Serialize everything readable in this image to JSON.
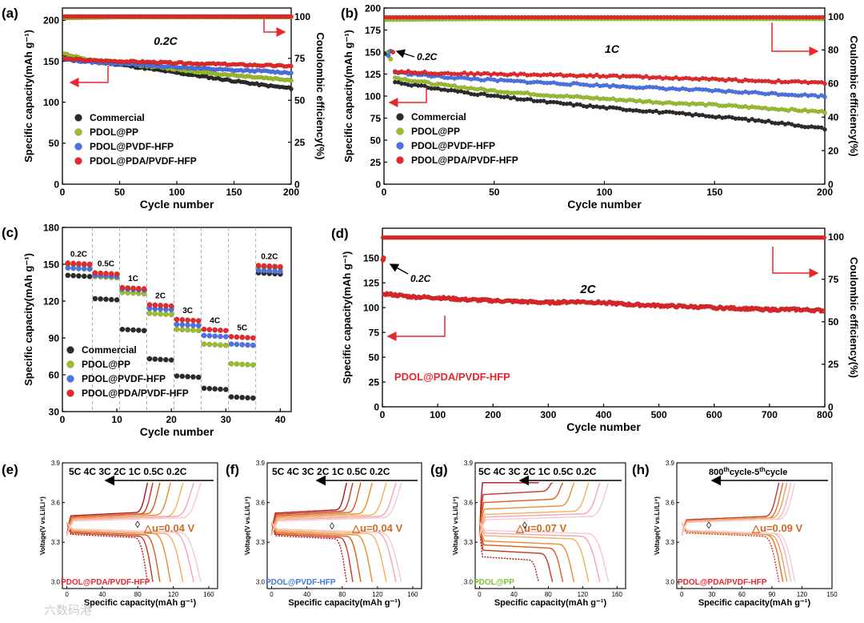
{
  "watermark": "六数码港",
  "colors": {
    "commercial": "#2b2b2b",
    "pp": "#9bbf2a",
    "pvdf": "#4a73e8",
    "pda": "#e8282b",
    "arrow": "#e8282b",
    "plot_text": "#000000",
    "panel_e_label": "#e8282b",
    "panel_f_label": "#3f7ad6",
    "panel_g_label": "#7fbf3a",
    "panel_h_label": "#e8282b",
    "delta_text": "#d2691e"
  },
  "chart_data": [
    {
      "id": "a",
      "panel_label": "(a)",
      "type": "scatter",
      "annotation": "0.2C",
      "xlabel": "Cycle number",
      "ylabel": "Specific capacity(mAh g⁻¹)",
      "y2label": "Couolombic efficiency(%)",
      "xlim": [
        0,
        200
      ],
      "ylim": [
        0,
        215
      ],
      "y2lim": [
        0,
        105
      ],
      "xticks": [
        0,
        50,
        100,
        150,
        200
      ],
      "yticks": [
        0,
        50,
        100,
        150,
        200
      ],
      "y2ticks": [
        0,
        25,
        50,
        75,
        100
      ],
      "legend": [
        "Commercial",
        "PDOL@PP",
        "PDOL@PVDF-HFP",
        "PDOL@PDA/PVDF-HFP"
      ],
      "series": [
        {
          "name": "Commercial",
          "color_key": "commercial",
          "x": [
            2,
            25,
            50,
            75,
            100,
            125,
            150,
            175,
            200
          ],
          "y": [
            158,
            150,
            146,
            141,
            136,
            131,
            126,
            121,
            117
          ]
        },
        {
          "name": "PDOL@PP",
          "color_key": "pp",
          "x": [
            2,
            25,
            50,
            75,
            100,
            125,
            150,
            175,
            200
          ],
          "y": [
            159,
            151,
            148,
            144,
            140,
            136,
            133,
            130,
            127
          ]
        },
        {
          "name": "PDOL@PVDF-HFP",
          "color_key": "pvdf",
          "x": [
            2,
            25,
            50,
            75,
            100,
            125,
            150,
            175,
            200
          ],
          "y": [
            152,
            149,
            147,
            145,
            143,
            141,
            139,
            138,
            136
          ]
        },
        {
          "name": "PDOL@PDA/PVDF-HFP",
          "color_key": "pda",
          "x": [
            2,
            25,
            50,
            75,
            100,
            125,
            150,
            175,
            200
          ],
          "y": [
            153,
            151,
            150,
            149,
            148,
            147,
            146,
            145,
            144
          ]
        }
      ],
      "ce_series": [
        {
          "color_key": "pp",
          "x": [
            1,
            50,
            100,
            150,
            200
          ],
          "y": [
            99,
            99.5,
            99.5,
            99.5,
            99.5
          ]
        },
        {
          "color_key": "pda",
          "x": [
            1,
            50,
            100,
            150,
            200
          ],
          "y": [
            100,
            100,
            100,
            100,
            100
          ]
        }
      ]
    },
    {
      "id": "b",
      "panel_label": "(b)",
      "type": "scatter",
      "annotation": "1C",
      "annotation2": "0.2C",
      "xlabel": "Cycle number",
      "ylabel": "Specific capacity(mAh g⁻¹)",
      "y2label": "Coulombic efficiency(%)",
      "xlim": [
        0,
        200
      ],
      "ylim": [
        0,
        200
      ],
      "y2lim": [
        0,
        105
      ],
      "xticks": [
        0,
        50,
        100,
        150,
        200
      ],
      "yticks": [
        0,
        25,
        50,
        75,
        100,
        125,
        150,
        175,
        200
      ],
      "y2ticks": [
        0,
        20,
        40,
        60,
        80,
        100
      ],
      "legend": [
        "Commercial",
        "PDOL@PP",
        "PDOL@PVDF-HFP",
        "PDOL@PDA/PVDF-HFP"
      ],
      "series": [
        {
          "name": "Commercial",
          "color_key": "commercial",
          "x": [
            5,
            25,
            50,
            75,
            100,
            125,
            150,
            175,
            200
          ],
          "y": [
            116,
            108,
            100,
            93,
            87,
            82,
            77,
            71,
            63
          ]
        },
        {
          "name": "PDOL@PP",
          "color_key": "pp",
          "x": [
            5,
            25,
            50,
            75,
            100,
            125,
            150,
            175,
            200
          ],
          "y": [
            121,
            113,
            106,
            101,
            97,
            93,
            90,
            86,
            82
          ]
        },
        {
          "name": "PDOL@PVDF-HFP",
          "color_key": "pvdf",
          "x": [
            5,
            25,
            50,
            75,
            100,
            125,
            150,
            175,
            200
          ],
          "y": [
            127,
            122,
            118,
            115,
            112,
            109,
            106,
            103,
            100
          ]
        },
        {
          "name": "PDOL@PDA/PVDF-HFP",
          "color_key": "pda",
          "x": [
            5,
            25,
            50,
            75,
            100,
            125,
            150,
            175,
            200
          ],
          "y": [
            128,
            126,
            125,
            124,
            123,
            121,
            119,
            117,
            115
          ]
        }
      ],
      "ce_series": [
        {
          "color_key": "pvdf",
          "x": [
            1,
            50,
            100,
            150,
            200
          ],
          "y": [
            99,
            99,
            99,
            99,
            99
          ]
        },
        {
          "color_key": "pp",
          "x": [
            1,
            50,
            100,
            150,
            200
          ],
          "y": [
            98,
            98.5,
            98.5,
            98.5,
            98.5
          ]
        },
        {
          "color_key": "pda",
          "x": [
            1,
            50,
            100,
            150,
            200
          ],
          "y": [
            99.5,
            99.5,
            99.5,
            99.5,
            99.5
          ]
        }
      ]
    },
    {
      "id": "c",
      "panel_label": "(c)",
      "type": "scatter",
      "xlabel": "Cycle number",
      "ylabel": "Specific capacity(mAh g⁻¹)",
      "xlim": [
        0,
        42
      ],
      "ylim": [
        30,
        180
      ],
      "xticks": [
        0,
        10,
        20,
        30,
        40
      ],
      "yticks": [
        30,
        60,
        90,
        120,
        150,
        180
      ],
      "rate_labels": [
        "0.2C",
        "0.5C",
        "1C",
        "2C",
        "3C",
        "4C",
        "5C",
        "0.2C"
      ],
      "legend": [
        "Commercial",
        "PDOL@PP",
        "PDOL@PVDF-HFP",
        "PDOL@PDA/PVDF-HFP"
      ],
      "segments": [
        {
          "rate": "0.2C",
          "start": 1,
          "end": 5,
          "values": {
            "Commercial": 141,
            "PDOL@PP": 150,
            "PDOL@PVDF-HFP": 147,
            "PDOL@PDA/PVDF-HFP": 151
          }
        },
        {
          "rate": "0.5C",
          "start": 6,
          "end": 10,
          "values": {
            "Commercial": 122,
            "PDOL@PP": 140,
            "PDOL@PVDF-HFP": 141,
            "PDOL@PDA/PVDF-HFP": 143
          }
        },
        {
          "rate": "1C",
          "start": 11,
          "end": 15,
          "values": {
            "Commercial": 97,
            "PDOL@PP": 127,
            "PDOL@PVDF-HFP": 130,
            "PDOL@PDA/PVDF-HFP": 131
          }
        },
        {
          "rate": "2C",
          "start": 16,
          "end": 20,
          "values": {
            "Commercial": 73,
            "PDOL@PP": 110,
            "PDOL@PVDF-HFP": 114,
            "PDOL@PDA/PVDF-HFP": 117
          }
        },
        {
          "rate": "3C",
          "start": 21,
          "end": 25,
          "values": {
            "Commercial": 59,
            "PDOL@PP": 97,
            "PDOL@PVDF-HFP": 101,
            "PDOL@PDA/PVDF-HFP": 105
          }
        },
        {
          "rate": "4C",
          "start": 26,
          "end": 30,
          "values": {
            "Commercial": 49,
            "PDOL@PP": 85,
            "PDOL@PVDF-HFP": 92,
            "PDOL@PDA/PVDF-HFP": 97
          }
        },
        {
          "rate": "5C",
          "start": 31,
          "end": 35,
          "values": {
            "Commercial": 42,
            "PDOL@PP": 69,
            "PDOL@PVDF-HFP": 85,
            "PDOL@PDA/PVDF-HFP": 91
          }
        },
        {
          "rate": "0.2C",
          "start": 36,
          "end": 40,
          "values": {
            "Commercial": 143,
            "PDOL@PP": 148,
            "PDOL@PVDF-HFP": 145,
            "PDOL@PDA/PVDF-HFP": 149
          }
        }
      ]
    },
    {
      "id": "d",
      "panel_label": "(d)",
      "type": "scatter",
      "annotation": "2C",
      "annotation2": "0.2C",
      "series_label": "PDOL@PDA/PVDF-HFP",
      "xlabel": "Cycle number",
      "ylabel": "Specific capacity(mAh g⁻¹)",
      "y2label": "Coulombic efficiency(%)",
      "xlim": [
        0,
        800
      ],
      "ylim": [
        0,
        180
      ],
      "y2lim": [
        0,
        105
      ],
      "xticks": [
        0,
        100,
        200,
        300,
        400,
        500,
        600,
        700,
        800
      ],
      "yticks": [
        0,
        25,
        50,
        75,
        100,
        125,
        150
      ],
      "y2ticks": [
        0,
        25,
        50,
        75,
        100
      ],
      "series": [
        {
          "name": "PDOL@PDA/PVDF-HFP",
          "color_key": "pda",
          "x": [
            3,
            50,
            100,
            150,
            200,
            250,
            300,
            350,
            400,
            450,
            500,
            550,
            600,
            650,
            700,
            750,
            800
          ],
          "y": [
            114,
            111,
            110,
            108,
            107,
            106,
            105,
            106,
            105,
            103,
            102,
            101,
            100,
            99,
            98,
            98,
            97
          ]
        }
      ],
      "initial_points": {
        "x": [
          1,
          2
        ],
        "y": [
          148,
          150
        ]
      },
      "ce_series": [
        {
          "color_key": "pda",
          "x": [
            1,
            100,
            200,
            300,
            400,
            500,
            600,
            700,
            800
          ],
          "y": [
            99.5,
            99.5,
            99.5,
            99.5,
            99.5,
            99.5,
            99.5,
            99.5,
            99.5
          ]
        }
      ]
    },
    {
      "id": "e",
      "panel_label": "(e)",
      "type": "line",
      "rates_text": "5C 4C 3C 2C 1C 0.5C 0.2C",
      "delta": "△u=0.04 V",
      "label": "PDOL@PDA/PVDF-HFP",
      "xlabel": "Specific capacity(mAh g⁻¹)",
      "ylabel": "Voltage(V vs.Li/Li⁺)",
      "xlim": [
        -5,
        170
      ],
      "ylim": [
        2.95,
        3.9
      ],
      "xticks": [
        0,
        40,
        80,
        120,
        160
      ],
      "yticks": [
        3.0,
        3.3,
        3.6,
        3.9
      ],
      "capacities": [
        91,
        97,
        105,
        117,
        131,
        143,
        151
      ],
      "charge_plateau": [
        3.5,
        3.49,
        3.49,
        3.48,
        3.47,
        3.47,
        3.46
      ],
      "discharge_plateau": [
        3.36,
        3.37,
        3.38,
        3.39,
        3.39,
        3.4,
        3.4
      ]
    },
    {
      "id": "f",
      "panel_label": "(f)",
      "type": "line",
      "rates_text": "5C 4C 3C 2C 1C 0.5C 0.2C",
      "delta": "△u=0.04 V",
      "label": "PDOL@PVDF-HFP",
      "xlabel": "Specific capacity(mAh g⁻¹)",
      "ylabel": "Voltage(V vs.Li/Li⁺)",
      "xlim": [
        -5,
        170
      ],
      "ylim": [
        2.95,
        3.9
      ],
      "xticks": [
        0,
        40,
        80,
        120,
        160
      ],
      "yticks": [
        3.0,
        3.3,
        3.6,
        3.9
      ],
      "capacities": [
        85,
        92,
        101,
        114,
        130,
        141,
        147
      ],
      "charge_plateau": [
        3.52,
        3.51,
        3.5,
        3.49,
        3.48,
        3.47,
        3.46
      ],
      "discharge_plateau": [
        3.35,
        3.36,
        3.37,
        3.38,
        3.39,
        3.4,
        3.4
      ]
    },
    {
      "id": "g",
      "panel_label": "(g)",
      "type": "line",
      "rates_text": "5C 4C 3C 2C 1C 0.5C 0.2C",
      "delta": "△u=0.07 V",
      "label": "PDOL@PP",
      "xlabel": "Specific capacity(mAh g⁻¹)",
      "ylabel": "Voltage(V vs.Li/Li⁺)",
      "xlim": [
        -5,
        170
      ],
      "ylim": [
        2.95,
        3.9
      ],
      "xticks": [
        0,
        40,
        80,
        120,
        160
      ],
      "yticks": [
        3.0,
        3.3,
        3.6,
        3.9
      ],
      "capacities": [
        69,
        85,
        97,
        110,
        127,
        140,
        150
      ],
      "charge_plateau": [
        3.75,
        3.66,
        3.6,
        3.55,
        3.51,
        3.49,
        3.47
      ],
      "discharge_plateau": [
        3.19,
        3.24,
        3.28,
        3.31,
        3.35,
        3.37,
        3.39
      ]
    },
    {
      "id": "h",
      "panel_label": "(h)",
      "type": "line",
      "cycle_text": "800thcycle-5thcycle",
      "delta": "△u=0.09 V",
      "label": "PDOL@PDA/PVDF-HFP",
      "xlabel": "Specific capacity(mAh g⁻¹)",
      "ylabel": "Voltage(V vs.Li/Li⁺)",
      "xlim": [
        -5,
        150
      ],
      "ylim": [
        2.95,
        3.9
      ],
      "xticks": [
        0,
        30,
        60,
        90,
        120,
        150
      ],
      "yticks": [
        3.0,
        3.3,
        3.6,
        3.9
      ],
      "capacities": [
        97,
        101,
        105,
        109,
        113
      ],
      "charge_plateau": [
        3.47,
        3.46,
        3.46,
        3.45,
        3.45
      ],
      "discharge_plateau": [
        3.37,
        3.38,
        3.38,
        3.39,
        3.39
      ]
    }
  ]
}
